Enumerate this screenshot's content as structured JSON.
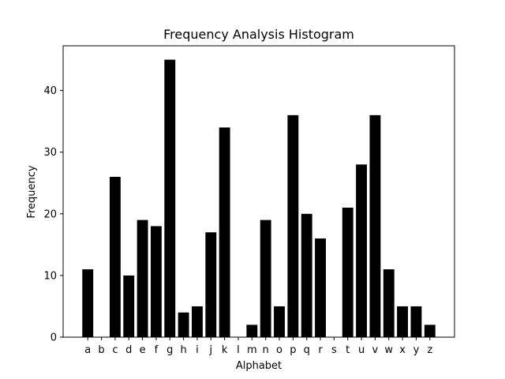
{
  "chart_data": {
    "type": "bar",
    "title": "Frequency Analysis Histogram",
    "xlabel": "Alphabet",
    "ylabel": "Frequency",
    "categories": [
      "a",
      "b",
      "c",
      "d",
      "e",
      "f",
      "g",
      "h",
      "i",
      "j",
      "k",
      "l",
      "m",
      "n",
      "o",
      "p",
      "q",
      "r",
      "s",
      "t",
      "u",
      "v",
      "w",
      "x",
      "y",
      "z"
    ],
    "values": [
      11,
      0,
      26,
      10,
      19,
      18,
      45,
      4,
      5,
      17,
      34,
      0,
      2,
      19,
      5,
      36,
      20,
      16,
      0,
      21,
      28,
      36,
      11,
      5,
      5,
      2
    ],
    "ylim": [
      0,
      47.25
    ],
    "yticks": [
      0,
      10,
      20,
      30,
      40
    ],
    "grid": false,
    "bar_color": "#000000"
  }
}
